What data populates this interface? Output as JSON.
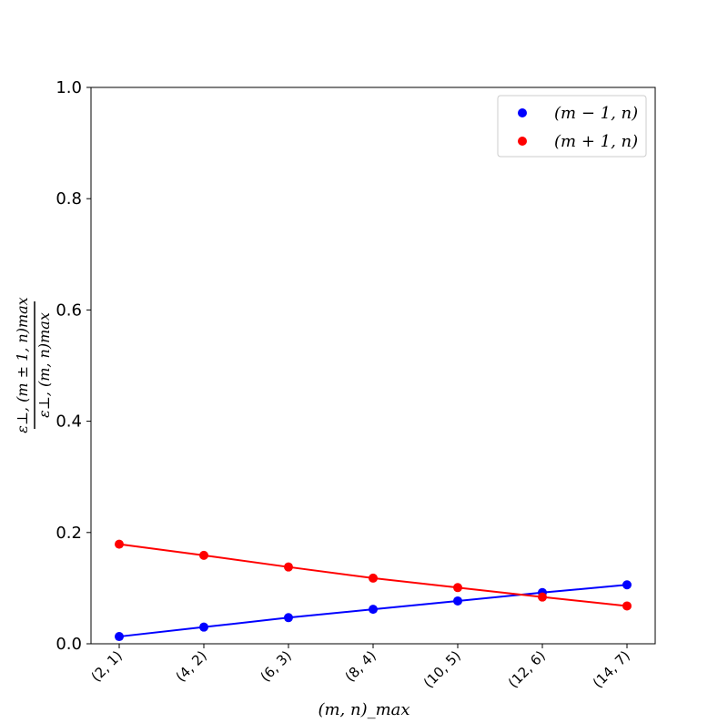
{
  "chart_data": {
    "type": "line",
    "title": "",
    "xlabel": "(m, n)_max",
    "ylabel": "ε⊥,(m±1,n)max / ε⊥,(m,n)max",
    "ylabel_numerator": "ε⊥, (m ± 1, n)max",
    "ylabel_denominator": "ε⊥, (m, n)max",
    "categories": [
      "(2, 1)",
      "(4, 2)",
      "(6, 3)",
      "(8, 4)",
      "(10, 5)",
      "(12, 6)",
      "(14, 7)"
    ],
    "ylim": [
      0,
      1
    ],
    "yticks": [
      "0.0",
      "0.2",
      "0.4",
      "0.6",
      "0.8",
      "1.0"
    ],
    "grid": false,
    "legend_position": "top-right",
    "series": [
      {
        "name": "(m − 1, n)",
        "color": "#0000ff",
        "values": [
          0.013,
          0.03,
          0.047,
          0.062,
          0.077,
          0.092,
          0.106
        ]
      },
      {
        "name": "(m + 1, n)",
        "color": "#ff0000",
        "values": [
          0.179,
          0.159,
          0.138,
          0.118,
          0.101,
          0.084,
          0.068
        ]
      }
    ]
  }
}
